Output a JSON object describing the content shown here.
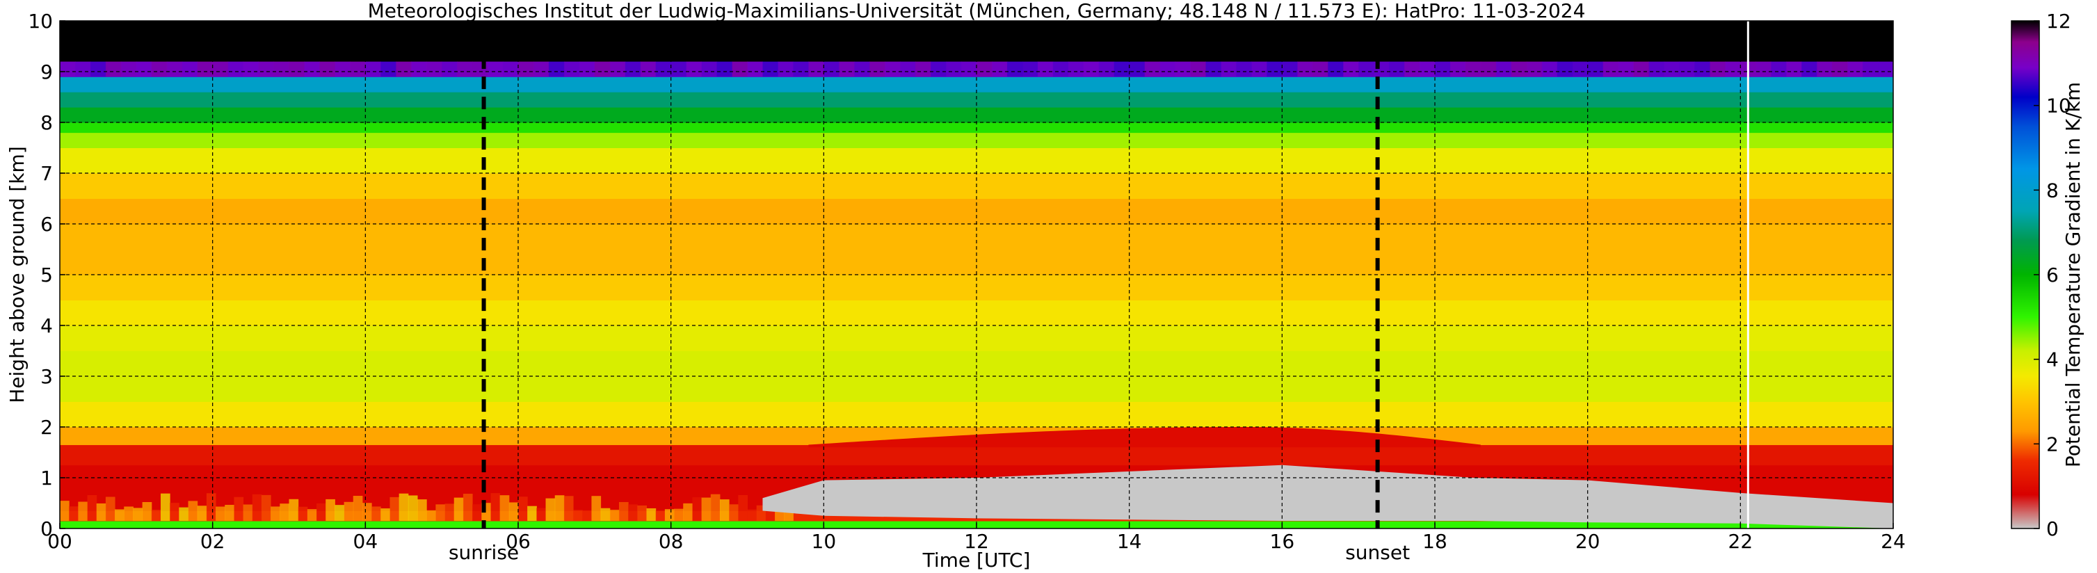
{
  "chart_data": {
    "type": "heatmap",
    "title": "Meteorologisches Institut der Ludwig-Maximilians-Universität (München, Germany; 48.148 N / 11.573 E):    HatPro: 11-03-2024",
    "xlabel": "Time [UTC]",
    "ylabel": "Height above ground [km]",
    "colorbar_label": "Potential Temperature Gradient in K/km",
    "xlim": [
      0,
      24
    ],
    "ylim": [
      0,
      10
    ],
    "clim": [
      0,
      12
    ],
    "x_ticks": [
      {
        "value": 0,
        "label": "00"
      },
      {
        "value": 2,
        "label": "02"
      },
      {
        "value": 4,
        "label": "04"
      },
      {
        "value": 6,
        "label": "06"
      },
      {
        "value": 8,
        "label": "08"
      },
      {
        "value": 10,
        "label": "10"
      },
      {
        "value": 12,
        "label": "12"
      },
      {
        "value": 14,
        "label": "14"
      },
      {
        "value": 16,
        "label": "16"
      },
      {
        "value": 18,
        "label": "18"
      },
      {
        "value": 20,
        "label": "20"
      },
      {
        "value": 22,
        "label": "22"
      },
      {
        "value": 24,
        "label": "24"
      }
    ],
    "y_ticks": [
      {
        "value": 0,
        "label": "0"
      },
      {
        "value": 1,
        "label": "1"
      },
      {
        "value": 2,
        "label": "2"
      },
      {
        "value": 3,
        "label": "3"
      },
      {
        "value": 4,
        "label": "4"
      },
      {
        "value": 5,
        "label": "5"
      },
      {
        "value": 6,
        "label": "6"
      },
      {
        "value": 7,
        "label": "7"
      },
      {
        "value": 8,
        "label": "8"
      },
      {
        "value": 9,
        "label": "9"
      },
      {
        "value": 10,
        "label": "10"
      }
    ],
    "colorbar_ticks": [
      {
        "value": 0,
        "label": "0"
      },
      {
        "value": 2,
        "label": "2"
      },
      {
        "value": 4,
        "label": "4"
      },
      {
        "value": 6,
        "label": "6"
      },
      {
        "value": 8,
        "label": "8"
      },
      {
        "value": 10,
        "label": "10"
      },
      {
        "value": 12,
        "label": "12"
      }
    ],
    "colormap": [
      {
        "value": 0,
        "color": "#c8c8c8"
      },
      {
        "value": 0.8,
        "color": "#d80000"
      },
      {
        "value": 1.6,
        "color": "#ee2a00"
      },
      {
        "value": 2.3,
        "color": "#ff9a00"
      },
      {
        "value": 3.0,
        "color": "#ffc400"
      },
      {
        "value": 3.6,
        "color": "#f4ea00"
      },
      {
        "value": 4.2,
        "color": "#c8f000"
      },
      {
        "value": 5.0,
        "color": "#30f400"
      },
      {
        "value": 6.0,
        "color": "#00b400"
      },
      {
        "value": 6.8,
        "color": "#009a50"
      },
      {
        "value": 7.5,
        "color": "#00a5b4"
      },
      {
        "value": 8.5,
        "color": "#0096e6"
      },
      {
        "value": 9.5,
        "color": "#0050d8"
      },
      {
        "value": 10.2,
        "color": "#0000c8"
      },
      {
        "value": 10.9,
        "color": "#7800c8"
      },
      {
        "value": 11.5,
        "color": "#8c008c"
      },
      {
        "value": 12,
        "color": "#000000"
      }
    ],
    "height_profile": [
      {
        "z_top": 0.15,
        "value": 5.0
      },
      {
        "z_top": 0.35,
        "value": 1.6
      },
      {
        "z_top": 1.25,
        "value": 0.9
      },
      {
        "z_top": 1.65,
        "value": 1.2
      },
      {
        "z_top": 2.0,
        "value": 2.5
      },
      {
        "z_top": 2.5,
        "value": 3.5
      },
      {
        "z_top": 3.5,
        "value": 4.0
      },
      {
        "z_top": 4.0,
        "value": 3.8
      },
      {
        "z_top": 4.5,
        "value": 3.5
      },
      {
        "z_top": 5.0,
        "value": 3.1
      },
      {
        "z_top": 6.0,
        "value": 2.8
      },
      {
        "z_top": 6.5,
        "value": 2.6
      },
      {
        "z_top": 7.0,
        "value": 3.1
      },
      {
        "z_top": 7.5,
        "value": 3.7
      },
      {
        "z_top": 7.8,
        "value": 4.4
      },
      {
        "z_top": 8.0,
        "value": 5.3
      },
      {
        "z_top": 8.3,
        "value": 6.3
      },
      {
        "z_top": 8.6,
        "value": 7.0
      },
      {
        "z_top": 8.9,
        "value": 7.9
      },
      {
        "z_top": 9.2,
        "value": 10.8
      },
      {
        "z_top": 10.0,
        "value": 12.0
      }
    ],
    "neutral_layer": {
      "value": 0,
      "segments": [
        {
          "t": 9.2,
          "z_bottom": 0.35,
          "z_top": 0.6
        },
        {
          "t": 10.0,
          "z_bottom": 0.25,
          "z_top": 0.95
        },
        {
          "t": 12.0,
          "z_bottom": 0.2,
          "z_top": 1.0
        },
        {
          "t": 16.0,
          "z_bottom": 0.15,
          "z_top": 1.25
        },
        {
          "t": 18.5,
          "z_bottom": 0.15,
          "z_top": 1.0
        },
        {
          "t": 20.0,
          "z_bottom": 0.12,
          "z_top": 0.95
        },
        {
          "t": 22.0,
          "z_bottom": 0.1,
          "z_top": 0.7
        },
        {
          "t": 24.0,
          "z_bottom": 0.0,
          "z_top": 0.5
        }
      ]
    },
    "convective_rise": {
      "start": 9.8,
      "end": 18.6,
      "peak": 15.5,
      "z_add": 0.35
    },
    "markers": [
      {
        "name": "sunrise",
        "label": "sunrise",
        "x": 5.55
      },
      {
        "name": "sunset",
        "label": "sunset",
        "x": 17.25
      }
    ],
    "white_line_x": 22.1,
    "grid": true
  }
}
